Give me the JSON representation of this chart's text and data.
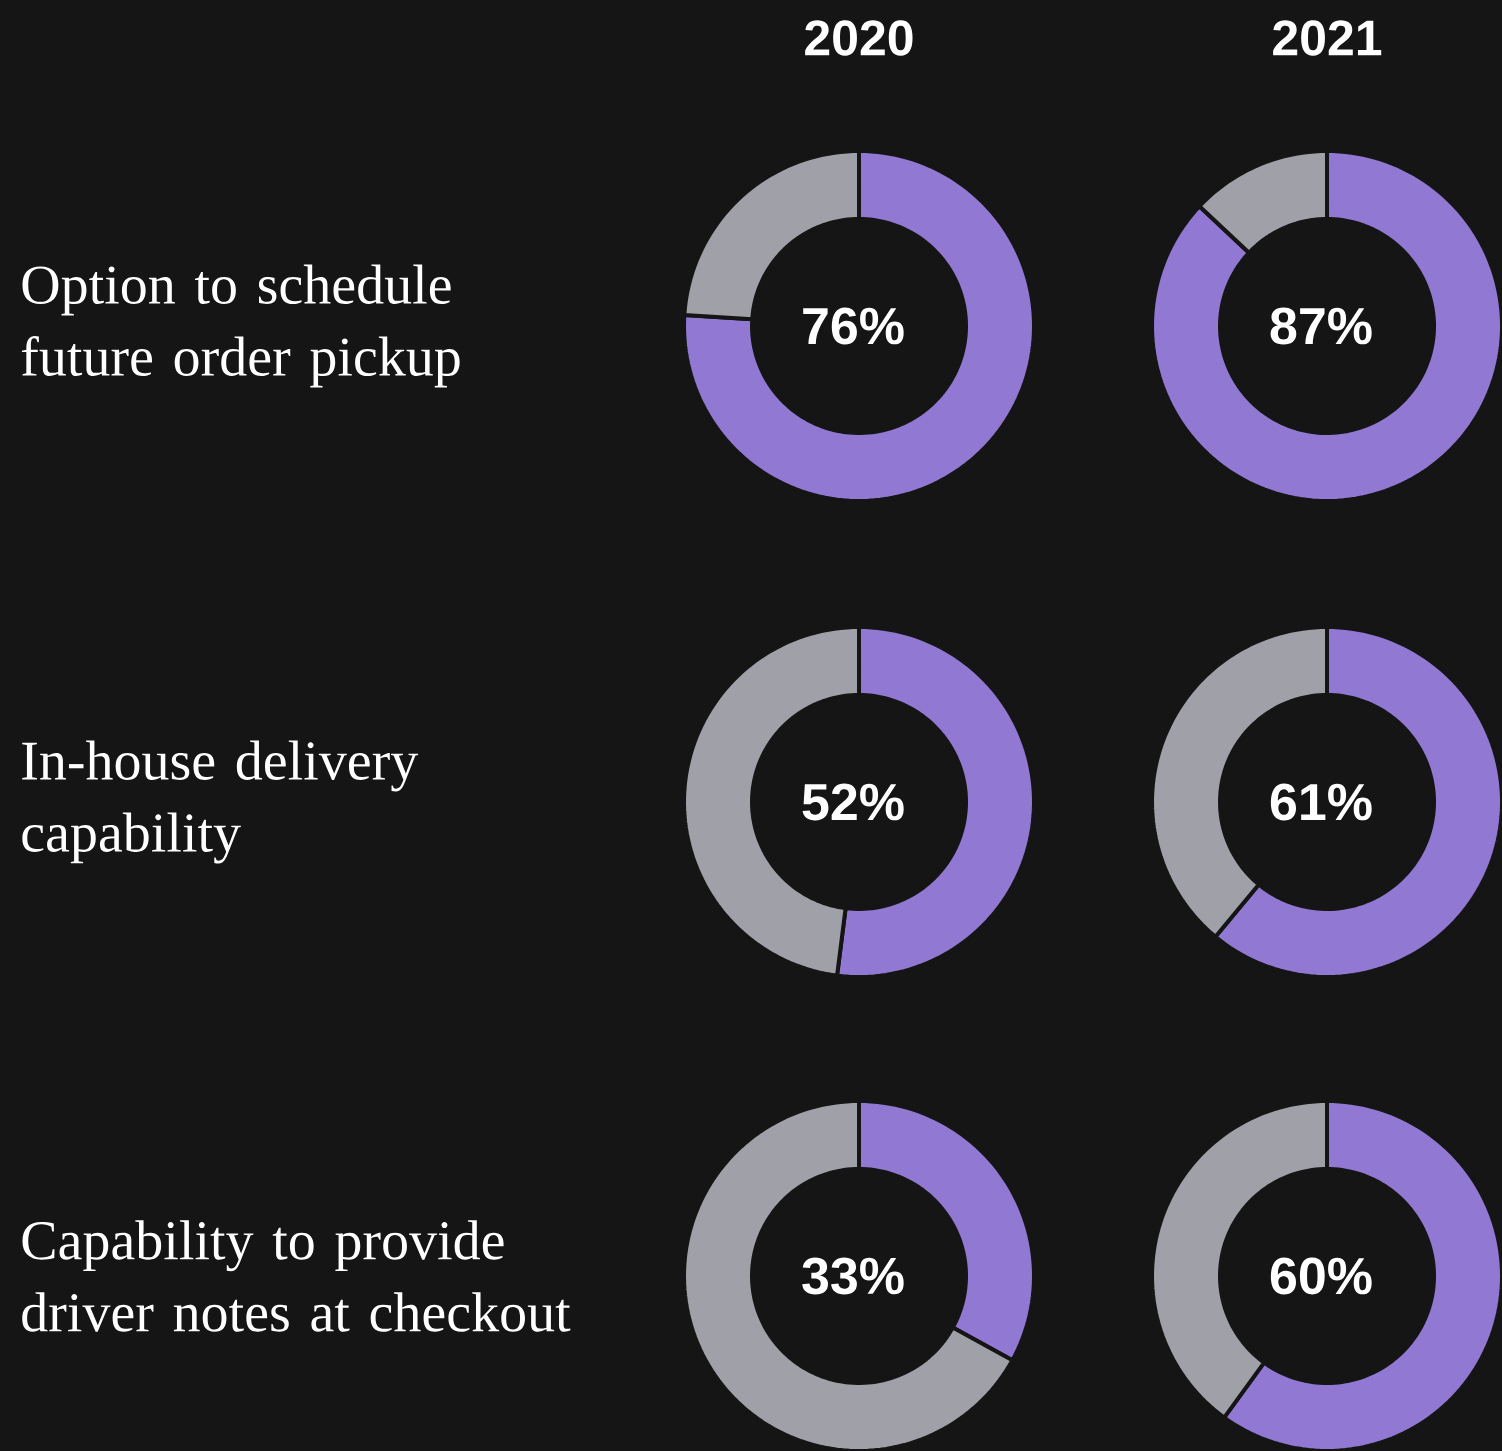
{
  "chart_data": [
    {
      "type": "donut",
      "title": "2020",
      "ylabel": "Option to schedule future order pickup",
      "categories": [
        null,
        null
      ],
      "values": [
        76,
        24
      ],
      "colors": [
        "#9178d3",
        "#a0a0a8"
      ],
      "annotations": [
        "76%"
      ]
    },
    {
      "type": "donut",
      "title": "2021",
      "categories": [
        null,
        null
      ],
      "values": [
        87,
        13
      ],
      "colors": [
        "#9178d3",
        "#a0a0a8"
      ],
      "annotations": [
        "87%"
      ]
    },
    {
      "type": "donut",
      "ylabel": "In-house delivery capability",
      "categories": [
        null,
        null
      ],
      "values": [
        52,
        48
      ],
      "colors": [
        "#9178d3",
        "#a0a0a8"
      ],
      "annotations": [
        "52%"
      ]
    },
    {
      "type": "donut",
      "categories": [
        null,
        null
      ],
      "values": [
        61,
        39
      ],
      "colors": [
        "#9178d3",
        "#a0a0a8"
      ],
      "annotations": [
        "61%"
      ]
    },
    {
      "type": "donut",
      "ylabel": "Capability to provide driver notes at checkout",
      "categories": [
        null,
        null
      ],
      "values": [
        33,
        67
      ],
      "colors": [
        "#9178d3",
        "#a0a0a8"
      ],
      "annotations": [
        "33%"
      ]
    },
    {
      "type": "donut",
      "categories": [
        null,
        null
      ],
      "values": [
        60,
        40
      ],
      "colors": [
        "#9178d3",
        "#a0a0a8"
      ],
      "annotations": [
        "60%"
      ]
    }
  ]
}
